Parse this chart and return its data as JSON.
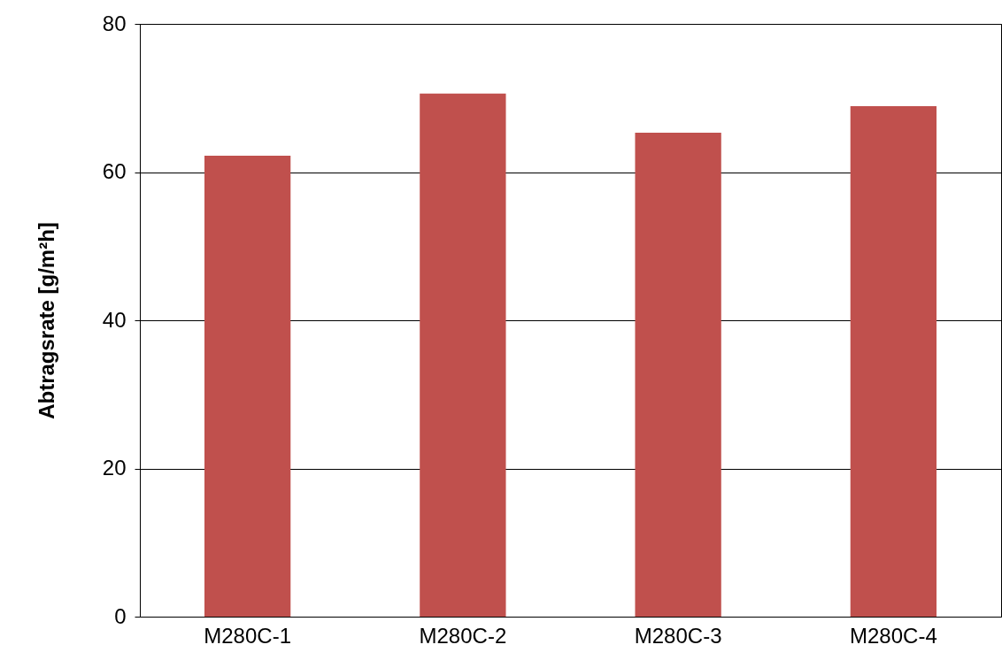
{
  "chart_data": {
    "type": "bar",
    "ylabel": "Abtragsrate [g/m²h]",
    "categories": [
      "M280C-1",
      "M280C-2",
      "M280C-3",
      "M280C-4"
    ],
    "values": [
      62.2,
      70.6,
      65.3,
      68.9
    ],
    "color": "#c0504d",
    "ylim": [
      0,
      80
    ],
    "yticks": [
      0,
      20,
      40,
      60,
      80
    ],
    "grid": "y"
  }
}
